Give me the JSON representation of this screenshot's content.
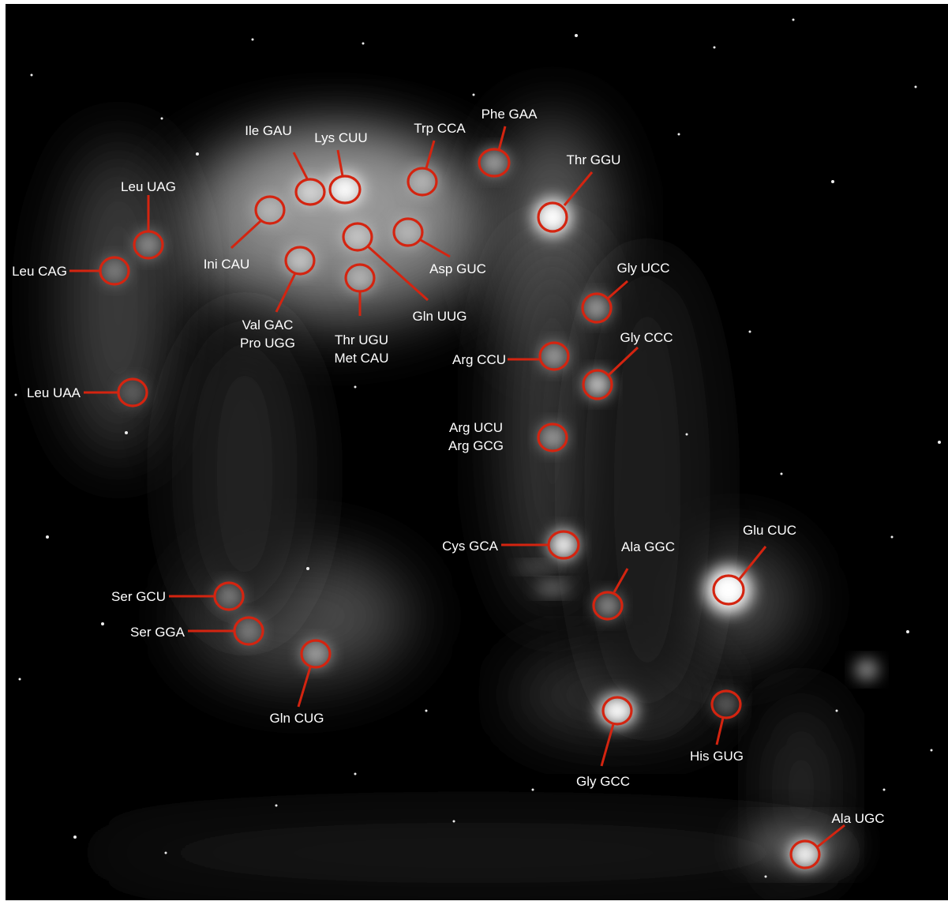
{
  "image": {
    "description": "tRNA spot map over a dark gel image",
    "colors": {
      "background": "#000000",
      "marker": "#d42410",
      "label_text": "#ffffff"
    }
  },
  "spots": [
    {
      "id": "ile-gau",
      "lines": [
        "Ile GAU"
      ]
    },
    {
      "id": "lys-cuu",
      "lines": [
        "Lys CUU"
      ]
    },
    {
      "id": "trp-cca",
      "lines": [
        "Trp CCA"
      ]
    },
    {
      "id": "phe-gaa",
      "lines": [
        "Phe GAA"
      ]
    },
    {
      "id": "thr-ggu",
      "lines": [
        "Thr GGU"
      ]
    },
    {
      "id": "leu-uag",
      "lines": [
        "Leu UAG"
      ]
    },
    {
      "id": "leu-cag",
      "lines": [
        "Leu CAG"
      ]
    },
    {
      "id": "ini-cau",
      "lines": [
        "Ini CAU"
      ]
    },
    {
      "id": "asp-guc",
      "lines": [
        "Asp GUC"
      ]
    },
    {
      "id": "val-gac",
      "lines": [
        "Val GAC",
        "Pro UGG"
      ]
    },
    {
      "id": "thr-ugu",
      "lines": [
        "Thr UGU",
        "Met CAU"
      ]
    },
    {
      "id": "gln-uug",
      "lines": [
        "Gln UUG"
      ]
    },
    {
      "id": "gly-ucc",
      "lines": [
        "Gly UCC"
      ]
    },
    {
      "id": "gly-ccc",
      "lines": [
        "Gly  CCC"
      ]
    },
    {
      "id": "arg-ccu",
      "lines": [
        "Arg CCU"
      ]
    },
    {
      "id": "leu-uaa",
      "lines": [
        "Leu UAA"
      ]
    },
    {
      "id": "arg-ucu",
      "lines": [
        "Arg UCU",
        "Arg GCG"
      ]
    },
    {
      "id": "cys-gca",
      "lines": [
        "Cys GCA"
      ]
    },
    {
      "id": "ala-ggc",
      "lines": [
        "Ala GGC"
      ]
    },
    {
      "id": "glu-cuc",
      "lines": [
        "Glu CUC"
      ]
    },
    {
      "id": "ser-gcu",
      "lines": [
        "Ser GCU"
      ]
    },
    {
      "id": "ser-gga",
      "lines": [
        "Ser GGA"
      ]
    },
    {
      "id": "gln-cug",
      "lines": [
        "Gln CUG"
      ]
    },
    {
      "id": "gly-gcc",
      "lines": [
        "Gly GCC"
      ]
    },
    {
      "id": "his-gug",
      "lines": [
        "His GUG"
      ]
    },
    {
      "id": "ala-ugc",
      "lines": [
        "Ala UGC"
      ]
    }
  ]
}
